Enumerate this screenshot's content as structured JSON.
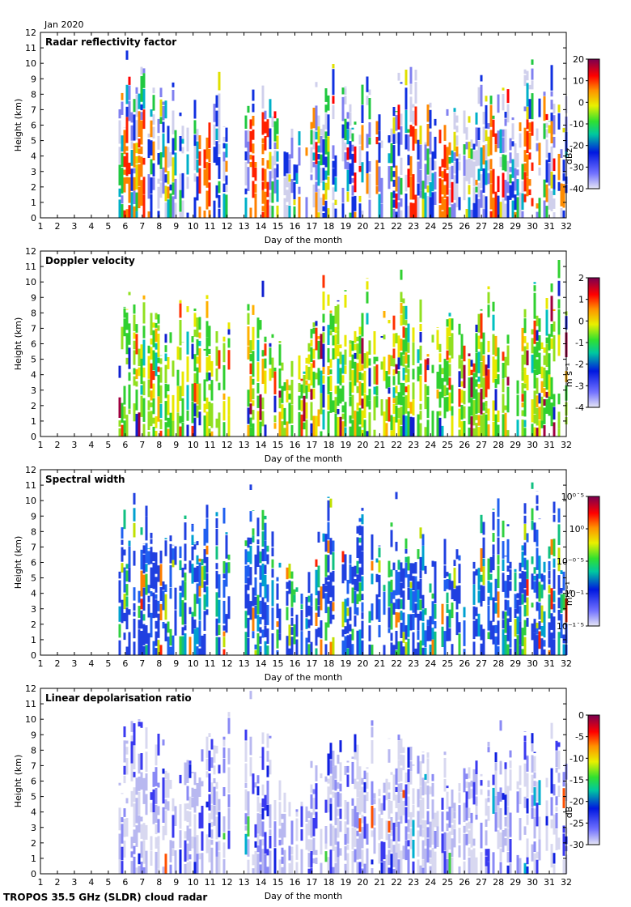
{
  "header": {
    "month_label": "Jan 2020"
  },
  "footer": {
    "instrument": "TROPOS 35.5 GHz (SLDR) cloud radar"
  },
  "chart_data": [
    {
      "type": "heatmap",
      "title": "Radar reflectivity factor",
      "xlabel": "Day of the month",
      "ylabel": "Height (km)",
      "xlim": [
        1,
        32
      ],
      "ylim": [
        0,
        12
      ],
      "x_ticks": [
        "1",
        "2",
        "3",
        "4",
        "5",
        "6",
        "7",
        "8",
        "9",
        "10",
        "11",
        "12",
        "13",
        "14",
        "15",
        "16",
        "17",
        "18",
        "19",
        "20",
        "21",
        "22",
        "23",
        "24",
        "25",
        "26",
        "27",
        "28",
        "29",
        "30",
        "31",
        "32"
      ],
      "y_ticks": [
        "0",
        "1",
        "2",
        "3",
        "4",
        "5",
        "6",
        "7",
        "8",
        "9",
        "10",
        "11",
        "12"
      ],
      "colorbar": {
        "label": "dBz",
        "range": [
          -40,
          20
        ],
        "ticks": [
          "20",
          "10",
          "0",
          "-10",
          "-20",
          "-30",
          "-40"
        ],
        "scale": "rainbow"
      },
      "data_start_day": 5.6,
      "gaps_days": [
        [
          11.5,
          11.75
        ],
        [
          12.05,
          13.0
        ]
      ],
      "echo_top_km": [
        [
          5.8,
          10.5
        ],
        [
          6.5,
          10.0
        ],
        [
          7.0,
          10.0
        ],
        [
          8.0,
          8.5
        ],
        [
          9.5,
          8.7
        ],
        [
          10.5,
          9.5
        ],
        [
          11.2,
          9.0
        ],
        [
          13.2,
          11.5
        ],
        [
          13.8,
          10.5
        ],
        [
          14.5,
          8.5
        ],
        [
          15.2,
          6.5
        ],
        [
          16.5,
          5.0
        ],
        [
          17.5,
          10.3
        ],
        [
          18.5,
          10.0
        ],
        [
          19.3,
          8.5
        ],
        [
          20.3,
          10.0
        ],
        [
          21.3,
          8.0
        ],
        [
          22.0,
          10.5
        ],
        [
          23.0,
          9.5
        ],
        [
          24.0,
          7.0
        ],
        [
          25.0,
          8.0
        ],
        [
          26.0,
          7.0
        ],
        [
          27.0,
          9.5
        ],
        [
          28.0,
          10.5
        ],
        [
          29.0,
          6.0
        ],
        [
          29.8,
          11.8
        ],
        [
          30.5,
          9.0
        ],
        [
          31.5,
          11.0
        ]
      ],
      "strong_echo_days": [
        6.0,
        6.9,
        10.5,
        10.9,
        13.5,
        14.2,
        20.6,
        22.9,
        24.7,
        27.6,
        29.7
      ]
    },
    {
      "type": "heatmap",
      "title": "Doppler velocity",
      "xlabel": "Day of the month",
      "ylabel": "Height (km)",
      "xlim": [
        1,
        32
      ],
      "ylim": [
        0,
        12
      ],
      "x_ticks": [
        "1",
        "2",
        "3",
        "4",
        "5",
        "6",
        "7",
        "8",
        "9",
        "10",
        "11",
        "12",
        "13",
        "14",
        "15",
        "16",
        "17",
        "18",
        "19",
        "20",
        "21",
        "22",
        "23",
        "24",
        "25",
        "26",
        "27",
        "28",
        "29",
        "30",
        "31",
        "32"
      ],
      "y_ticks": [
        "0",
        "1",
        "2",
        "3",
        "4",
        "5",
        "6",
        "7",
        "8",
        "9",
        "10",
        "11",
        "12"
      ],
      "colorbar": {
        "label": "m s⁻¹",
        "range": [
          -4,
          2
        ],
        "ticks": [
          "2",
          "1",
          "0",
          "-1",
          "-2",
          "-3",
          "-4"
        ],
        "scale": "rainbow"
      },
      "data_start_day": 5.6,
      "gaps_days": [
        [
          11.5,
          11.75
        ],
        [
          12.05,
          13.0
        ]
      ]
    },
    {
      "type": "heatmap",
      "title": "Spectral width",
      "xlabel": "Day of the month",
      "ylabel": "Height (km)",
      "xlim": [
        1,
        32
      ],
      "ylim": [
        0,
        12
      ],
      "x_ticks": [
        "1",
        "2",
        "3",
        "4",
        "5",
        "6",
        "7",
        "8",
        "9",
        "10",
        "11",
        "12",
        "13",
        "14",
        "15",
        "16",
        "17",
        "18",
        "19",
        "20",
        "21",
        "22",
        "23",
        "24",
        "25",
        "26",
        "27",
        "28",
        "29",
        "30",
        "31",
        "32"
      ],
      "y_ticks": [
        "0",
        "1",
        "2",
        "3",
        "4",
        "5",
        "6",
        "7",
        "8",
        "9",
        "10",
        "11",
        "12"
      ],
      "colorbar": {
        "label": "m s⁻¹",
        "range_log10": [
          -1.5,
          0.5
        ],
        "ticks": [
          "10⁰˙⁵",
          "10⁰",
          "10⁻⁰˙⁵",
          "10⁻¹",
          "10⁻¹˙⁵"
        ],
        "scale": "rainbow"
      },
      "data_start_day": 5.6,
      "gaps_days": [
        [
          11.5,
          11.75
        ],
        [
          12.05,
          13.0
        ]
      ]
    },
    {
      "type": "heatmap",
      "title": "Linear depolarisation ratio",
      "xlabel": "Day of the month",
      "ylabel": "Height (km)",
      "xlim": [
        1,
        32
      ],
      "ylim": [
        0,
        12
      ],
      "x_ticks": [
        "1",
        "2",
        "3",
        "4",
        "5",
        "6",
        "7",
        "8",
        "9",
        "10",
        "11",
        "12",
        "13",
        "14",
        "15",
        "16",
        "17",
        "18",
        "19",
        "20",
        "21",
        "22",
        "23",
        "24",
        "25",
        "26",
        "27",
        "28",
        "29",
        "30",
        "31",
        "32"
      ],
      "y_ticks": [
        "0",
        "1",
        "2",
        "3",
        "4",
        "5",
        "6",
        "7",
        "8",
        "9",
        "10",
        "11",
        "12"
      ],
      "colorbar": {
        "label": "dB",
        "range": [
          -30,
          0
        ],
        "ticks": [
          "0",
          "-5",
          "-10",
          "-15",
          "-20",
          "-25",
          "-30"
        ],
        "scale": "rainbow"
      },
      "data_start_day": 5.6,
      "gaps_days": [
        [
          11.5,
          11.75
        ],
        [
          12.05,
          13.0
        ]
      ]
    }
  ]
}
